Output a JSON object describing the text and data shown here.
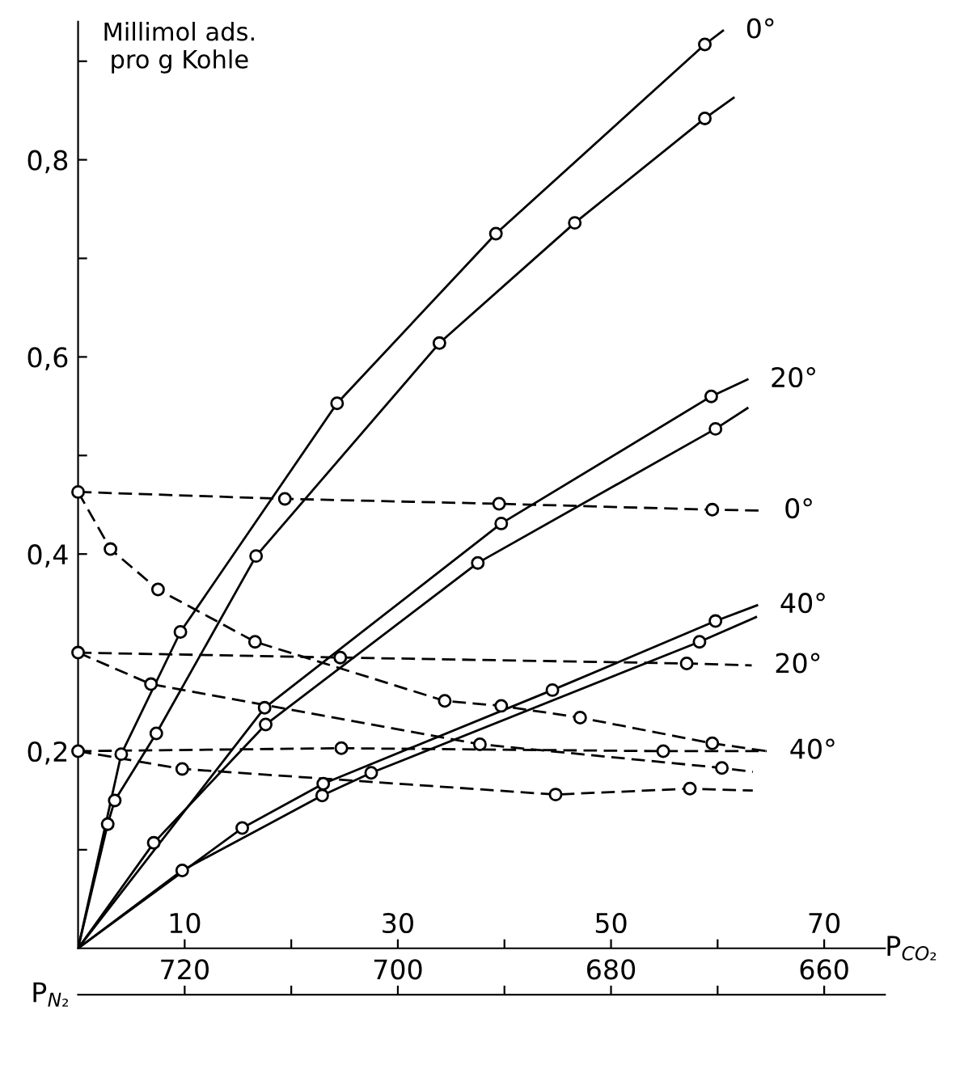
{
  "chart_data": {
    "type": "line",
    "ylabel": "Millimol ads.\npro g Kohle",
    "xlabel": "P$_{CO₂}$",
    "x2label": "P$_{N₂}$",
    "xlim": [
      0,
      75.7
    ],
    "ylim": [
      0,
      0.94
    ],
    "x2lim": [
      730,
      654.3
    ],
    "xticks": [
      10,
      {
        "value": 20,
        "label": null
      },
      30,
      {
        "value": 40,
        "label": null
      },
      50,
      {
        "value": 60,
        "label": null
      },
      70
    ],
    "x2ticks": [
      720,
      {
        "value": 710,
        "label": null
      },
      700,
      {
        "value": 690,
        "label": null
      },
      680,
      {
        "value": 670,
        "label": null
      },
      660
    ],
    "yticks": [
      {
        "value": 0.1,
        "label": null
      },
      {
        "value": 0.2,
        "label": "0,2"
      },
      {
        "value": 0.3,
        "label": null
      },
      {
        "value": 0.4,
        "label": "0,4"
      },
      {
        "value": 0.5,
        "label": null
      },
      {
        "value": 0.6,
        "label": "0,6"
      },
      {
        "value": 0.7,
        "label": null
      },
      {
        "value": 0.8,
        "label": "0,8"
      },
      {
        "value": 0.9,
        "label": null
      }
    ],
    "grid": false,
    "legend": false,
    "series": [
      {
        "line_style": "solid",
        "marker": "none",
        "color": "#000000",
        "x": [
          0,
          4.05,
          9.6,
          24.3,
          39.2,
          58.8,
          60.5
        ],
        "values": [
          0,
          0.197,
          0.321,
          0.553,
          0.725,
          0.917,
          0.931
        ]
      },
      {
        "type": "scatter",
        "marker": "circle",
        "color": "#000000",
        "x": [
          4.05,
          9.6,
          24.3,
          39.2,
          58.8
        ],
        "values": [
          0.197,
          0.321,
          0.553,
          0.725,
          0.917
        ]
      },
      {
        "line_style": "solid",
        "marker": "none",
        "color": "#000000",
        "x": [
          0,
          2.78,
          3.44,
          7.34,
          16.7,
          33.9,
          46.6,
          58.8,
          61.5
        ],
        "values": [
          0,
          0.126,
          0.15,
          0.218,
          0.398,
          0.614,
          0.736,
          0.842,
          0.863
        ]
      },
      {
        "type": "scatter",
        "marker": "circle",
        "color": "#000000",
        "x": [
          2.78,
          3.44,
          7.34,
          16.7,
          33.9,
          46.6,
          58.8
        ],
        "values": [
          0.126,
          0.15,
          0.218,
          0.398,
          0.614,
          0.736,
          0.842
        ]
      },
      {
        "line_style": "solid",
        "marker": "none",
        "color": "#000000",
        "x": [
          0,
          17.5,
          39.7,
          59.4,
          62.8
        ],
        "values": [
          0,
          0.244,
          0.431,
          0.56,
          0.577
        ]
      },
      {
        "type": "scatter",
        "marker": "circle",
        "color": "#000000",
        "x": [
          17.5,
          39.7,
          59.4
        ],
        "values": [
          0.244,
          0.431,
          0.56
        ]
      },
      {
        "line_style": "solid",
        "marker": "none",
        "color": "#000000",
        "x": [
          0,
          7.1,
          17.6,
          37.5,
          59.8,
          62.8
        ],
        "values": [
          0,
          0.107,
          0.227,
          0.391,
          0.527,
          0.548
        ]
      },
      {
        "type": "scatter",
        "marker": "circle",
        "color": "#000000",
        "x": [
          7.1,
          17.6,
          37.5,
          59.8
        ],
        "values": [
          0.107,
          0.227,
          0.391,
          0.527
        ]
      },
      {
        "line_style": "solid",
        "marker": "none",
        "color": "#000000",
        "x": [
          0,
          15.4,
          23.0,
          44.5,
          59.8,
          63.7
        ],
        "values": [
          0,
          0.122,
          0.167,
          0.262,
          0.332,
          0.348
        ]
      },
      {
        "type": "scatter",
        "marker": "circle",
        "color": "#000000",
        "x": [
          15.4,
          23.0,
          44.5,
          59.8
        ],
        "values": [
          0.122,
          0.167,
          0.262,
          0.332
        ]
      },
      {
        "line_style": "solid",
        "marker": "none",
        "color": "#000000",
        "x": [
          0,
          9.77,
          22.9,
          27.5,
          58.3,
          63.6
        ],
        "values": [
          0,
          0.079,
          0.155,
          0.178,
          0.311,
          0.336
        ]
      },
      {
        "type": "scatter",
        "marker": "circle",
        "color": "#000000",
        "x": [
          9.77,
          22.9,
          27.5,
          58.3
        ],
        "values": [
          0.079,
          0.155,
          0.178,
          0.311
        ]
      },
      {
        "line_style": "dashed",
        "marker": "none",
        "color": "#000000",
        "x": [
          0,
          19.4,
          39.5,
          59.5,
          64.1
        ],
        "values": [
          0.463,
          0.456,
          0.451,
          0.445,
          0.444
        ]
      },
      {
        "type": "scatter",
        "marker": "circle",
        "color": "#000000",
        "x": [
          0,
          19.4,
          39.5,
          59.5
        ],
        "values": [
          0.463,
          0.456,
          0.451,
          0.445
        ]
      },
      {
        "line_style": "dashed",
        "marker": "none",
        "color": "#000000",
        "x": [
          0,
          24.6,
          57.1,
          63.2
        ],
        "values": [
          0.3,
          0.295,
          0.289,
          0.287
        ]
      },
      {
        "type": "scatter",
        "marker": "circle",
        "color": "#000000",
        "x": [
          0,
          24.6,
          57.1
        ],
        "values": [
          0.3,
          0.295,
          0.289
        ]
      },
      {
        "line_style": "dashed",
        "marker": "none",
        "color": "#000000",
        "x": [
          0,
          24.7,
          54.9,
          64.6
        ],
        "values": [
          0.2,
          0.203,
          0.2,
          0.2
        ]
      },
      {
        "type": "scatter",
        "marker": "circle",
        "color": "#000000",
        "x": [
          0,
          24.7,
          54.9
        ],
        "values": [
          0.2,
          0.203,
          0.2
        ]
      },
      {
        "line_style": "dashed",
        "marker": "none",
        "color": "#000000",
        "x": [
          0,
          3.04,
          7.5,
          16.6,
          34.4,
          39.7,
          47.1,
          59.5,
          64.6
        ],
        "values": [
          0.463,
          0.405,
          0.364,
          0.311,
          0.251,
          0.246,
          0.234,
          0.208,
          0.2
        ]
      },
      {
        "type": "scatter",
        "marker": "circle",
        "color": "#000000",
        "x": [
          3.04,
          7.5,
          16.6,
          34.4,
          39.7,
          47.1,
          59.5
        ],
        "values": [
          0.405,
          0.364,
          0.311,
          0.251,
          0.246,
          0.234,
          0.208
        ]
      },
      {
        "line_style": "dashed",
        "marker": "none",
        "color": "#000000",
        "x": [
          0,
          6.84,
          37.7,
          60.4,
          63.3
        ],
        "values": [
          0.3,
          0.268,
          0.207,
          0.183,
          0.179
        ]
      },
      {
        "type": "scatter",
        "marker": "circle",
        "color": "#000000",
        "x": [
          6.84,
          37.7,
          60.4
        ],
        "values": [
          0.268,
          0.207,
          0.183
        ]
      },
      {
        "line_style": "dashed",
        "marker": "none",
        "color": "#000000",
        "x": [
          0,
          9.77,
          44.8,
          57.4,
          63.3
        ],
        "values": [
          0.2,
          0.182,
          0.156,
          0.162,
          0.16
        ]
      },
      {
        "type": "scatter",
        "marker": "circle",
        "color": "#000000",
        "x": [
          9.77,
          44.8,
          57.4
        ],
        "values": [
          0.182,
          0.156,
          0.162
        ]
      }
    ],
    "annotations": [
      {
        "text": "0°",
        "x": 60.5,
        "y": 0.931
      },
      {
        "text": "20°",
        "x": 62.8,
        "y": 0.577
      },
      {
        "text": "0°",
        "x": 64.1,
        "y": 0.444
      },
      {
        "text": "40°",
        "x": 63.7,
        "y": 0.348
      },
      {
        "text": "20°",
        "x": 63.2,
        "y": 0.287
      },
      {
        "text": "40°",
        "x": 64.6,
        "y": 0.2
      }
    ]
  }
}
